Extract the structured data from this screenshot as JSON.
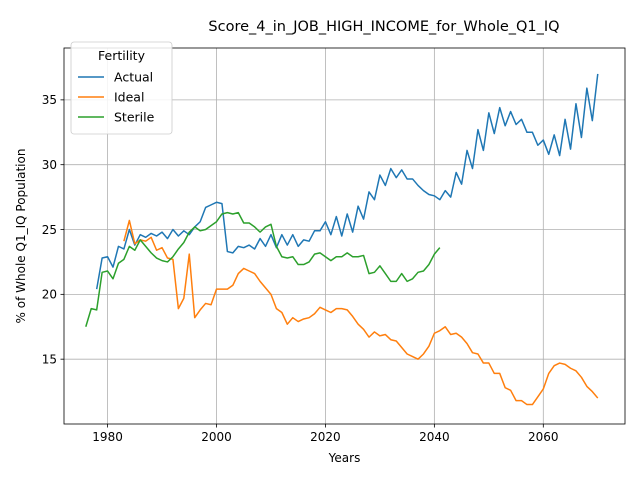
{
  "chart_data": {
    "type": "line",
    "title": "Score_4_in_JOB_HIGH_INCOME_for_Whole_Q1_IQ",
    "xlabel": "Years",
    "ylabel": "% of Whole Q1_IQ Population",
    "xlim": [
      1972,
      2075
    ],
    "ylim": [
      10,
      39
    ],
    "xticks": [
      1980,
      2000,
      2020,
      2040,
      2060
    ],
    "yticks": [
      15,
      20,
      25,
      30,
      35
    ],
    "grid": true,
    "legend": {
      "title": "Fertility",
      "placement": "top-left"
    },
    "series": [
      {
        "name": "Actual",
        "color": "#1f77b4",
        "x": [
          1978,
          1979,
          1980,
          1981,
          1982,
          1983,
          1984,
          1985,
          1986,
          1987,
          1988,
          1989,
          1990,
          1991,
          1992,
          1993,
          1994,
          1995,
          1996,
          1997,
          1998,
          1999,
          2000,
          2001,
          2002,
          2003,
          2004,
          2005,
          2006,
          2007,
          2008,
          2009,
          2010,
          2011,
          2012,
          2013,
          2014,
          2015,
          2016,
          2017,
          2018,
          2019,
          2020,
          2021,
          2022,
          2023,
          2024,
          2025,
          2026,
          2027,
          2028,
          2029,
          2030,
          2031,
          2032,
          2033,
          2034,
          2035,
          2036,
          2037,
          2038,
          2039,
          2040,
          2041,
          2042,
          2043,
          2044,
          2045,
          2046,
          2047,
          2048,
          2049,
          2050,
          2051,
          2052,
          2053,
          2054,
          2055,
          2056,
          2057,
          2058,
          2059,
          2060,
          2061,
          2062,
          2063,
          2064,
          2065,
          2066,
          2067,
          2068,
          2069,
          2070
        ],
        "values": [
          20.4,
          22.8,
          22.9,
          22.1,
          23.7,
          23.5,
          25.0,
          23.8,
          24.6,
          24.4,
          24.7,
          24.5,
          24.8,
          24.3,
          25.0,
          24.5,
          24.9,
          24.6,
          25.2,
          25.6,
          26.7,
          26.9,
          27.1,
          27.0,
          23.3,
          23.2,
          23.7,
          23.6,
          23.8,
          23.5,
          24.3,
          23.7,
          24.6,
          23.6,
          24.6,
          23.8,
          24.6,
          23.7,
          24.2,
          24.1,
          24.9,
          24.9,
          25.6,
          24.6,
          26.0,
          24.5,
          26.2,
          24.8,
          26.8,
          25.8,
          27.9,
          27.3,
          29.2,
          28.4,
          29.7,
          29.0,
          29.6,
          28.9,
          28.9,
          28.4,
          28.0,
          27.7,
          27.6,
          27.3,
          28.0,
          27.5,
          29.4,
          28.5,
          31.1,
          29.7,
          32.7,
          31.1,
          34.0,
          32.4,
          34.4,
          33.0,
          34.1,
          33.1,
          33.5,
          32.5,
          32.5,
          31.5,
          31.9,
          30.8,
          32.3,
          30.7,
          33.5,
          31.2,
          34.7,
          32.1,
          35.9,
          33.4,
          37.0
        ]
      },
      {
        "name": "Ideal",
        "color": "#ff7f0e",
        "x": [
          1983,
          1984,
          1985,
          1986,
          1987,
          1988,
          1989,
          1990,
          1991,
          1992,
          1993,
          1994,
          1995,
          1996,
          1997,
          1998,
          1999,
          2000,
          2001,
          2002,
          2003,
          2004,
          2005,
          2006,
          2007,
          2008,
          2009,
          2010,
          2011,
          2012,
          2013,
          2014,
          2015,
          2016,
          2017,
          2018,
          2019,
          2020,
          2021,
          2022,
          2023,
          2024,
          2025,
          2026,
          2027,
          2028,
          2029,
          2030,
          2031,
          2032,
          2033,
          2034,
          2035,
          2036,
          2037,
          2038,
          2039,
          2040,
          2041,
          2042,
          2043,
          2044,
          2045,
          2046,
          2047,
          2048,
          2049,
          2050,
          2051,
          2052,
          2053,
          2054,
          2055,
          2056,
          2057,
          2058,
          2059,
          2060,
          2061,
          2062,
          2063,
          2064,
          2065,
          2066,
          2067,
          2068,
          2069,
          2070
        ],
        "values": [
          24.1,
          25.7,
          23.9,
          24.2,
          24.1,
          24.4,
          23.4,
          23.6,
          22.8,
          22.7,
          18.9,
          19.7,
          23.1,
          18.2,
          18.8,
          19.3,
          19.2,
          20.4,
          20.4,
          20.4,
          20.7,
          21.6,
          22.0,
          21.8,
          21.6,
          21.0,
          20.5,
          20.0,
          18.9,
          18.6,
          17.7,
          18.2,
          17.9,
          18.1,
          18.2,
          18.5,
          19.0,
          18.8,
          18.6,
          18.9,
          18.9,
          18.8,
          18.3,
          17.7,
          17.3,
          16.7,
          17.1,
          16.8,
          16.9,
          16.5,
          16.4,
          15.9,
          15.4,
          15.2,
          15.0,
          15.4,
          16.0,
          17.0,
          17.2,
          17.5,
          16.9,
          17.0,
          16.7,
          16.2,
          15.5,
          15.4,
          14.7,
          14.7,
          13.9,
          13.9,
          12.8,
          12.6,
          11.8,
          11.8,
          11.5,
          11.5,
          12.1,
          12.7,
          13.9,
          14.5,
          14.7,
          14.6,
          14.3,
          14.1,
          13.6,
          12.9,
          12.5,
          12.0
        ]
      },
      {
        "name": "Sterile",
        "color": "#2ca02c",
        "x": [
          1976,
          1977,
          1978,
          1979,
          1980,
          1981,
          1982,
          1983,
          1984,
          1985,
          1986,
          1987,
          1988,
          1989,
          1990,
          1991,
          1992,
          1993,
          1994,
          1995,
          1996,
          1997,
          1998,
          1999,
          2000,
          2001,
          2002,
          2003,
          2004,
          2005,
          2006,
          2007,
          2008,
          2009,
          2010,
          2011,
          2012,
          2013,
          2014,
          2015,
          2016,
          2017,
          2018,
          2019,
          2020,
          2021,
          2022,
          2023,
          2024,
          2025,
          2026,
          2027,
          2028,
          2029,
          2030,
          2031,
          2032,
          2033,
          2034,
          2035,
          2036,
          2037,
          2038,
          2039,
          2040,
          2041
        ],
        "values": [
          17.5,
          18.9,
          18.8,
          21.7,
          21.8,
          21.2,
          22.4,
          22.7,
          23.7,
          23.4,
          24.2,
          23.7,
          23.2,
          22.8,
          22.6,
          22.5,
          22.9,
          23.5,
          24.0,
          24.8,
          25.2,
          24.9,
          25.0,
          25.3,
          25.6,
          26.2,
          26.3,
          26.2,
          26.3,
          25.5,
          25.5,
          25.2,
          24.8,
          25.2,
          25.4,
          23.7,
          22.9,
          22.8,
          22.9,
          22.3,
          22.3,
          22.5,
          23.1,
          23.2,
          22.9,
          22.6,
          22.9,
          22.9,
          23.2,
          22.9,
          22.9,
          23.0,
          21.6,
          21.7,
          22.2,
          21.6,
          21.0,
          21.0,
          21.6,
          21.0,
          21.2,
          21.7,
          21.8,
          22.3,
          23.1,
          23.6
        ]
      }
    ]
  }
}
